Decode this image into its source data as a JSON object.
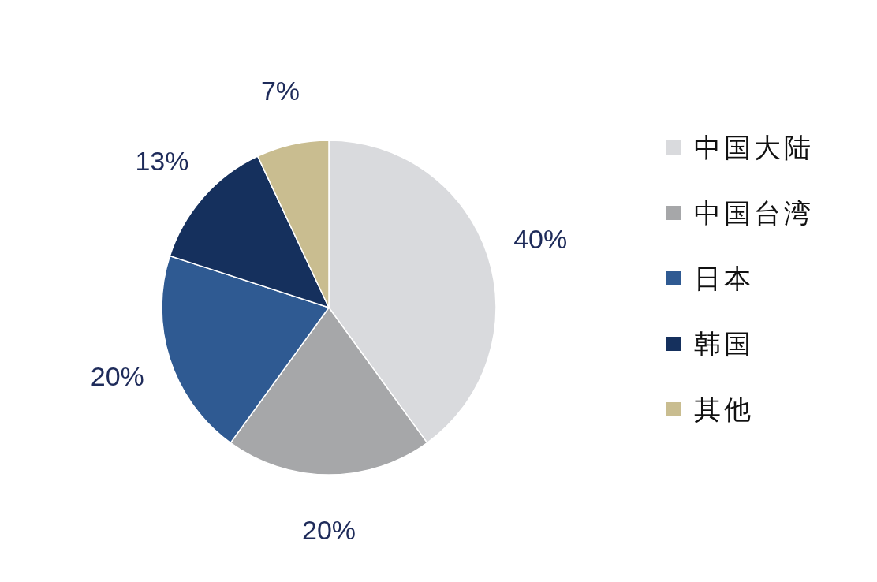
{
  "chart_data": {
    "type": "pie",
    "categories": [
      "中国大陆",
      "中国台湾",
      "日本",
      "韩国",
      "其他"
    ],
    "values": [
      40,
      20,
      20,
      13,
      7
    ],
    "colors": [
      "#d9dadd",
      "#a6a7a9",
      "#2f5a92",
      "#15305d",
      "#c9bd90"
    ],
    "value_labels": [
      "40%",
      "20%",
      "20%",
      "13%",
      "7%"
    ],
    "legend": "right"
  }
}
